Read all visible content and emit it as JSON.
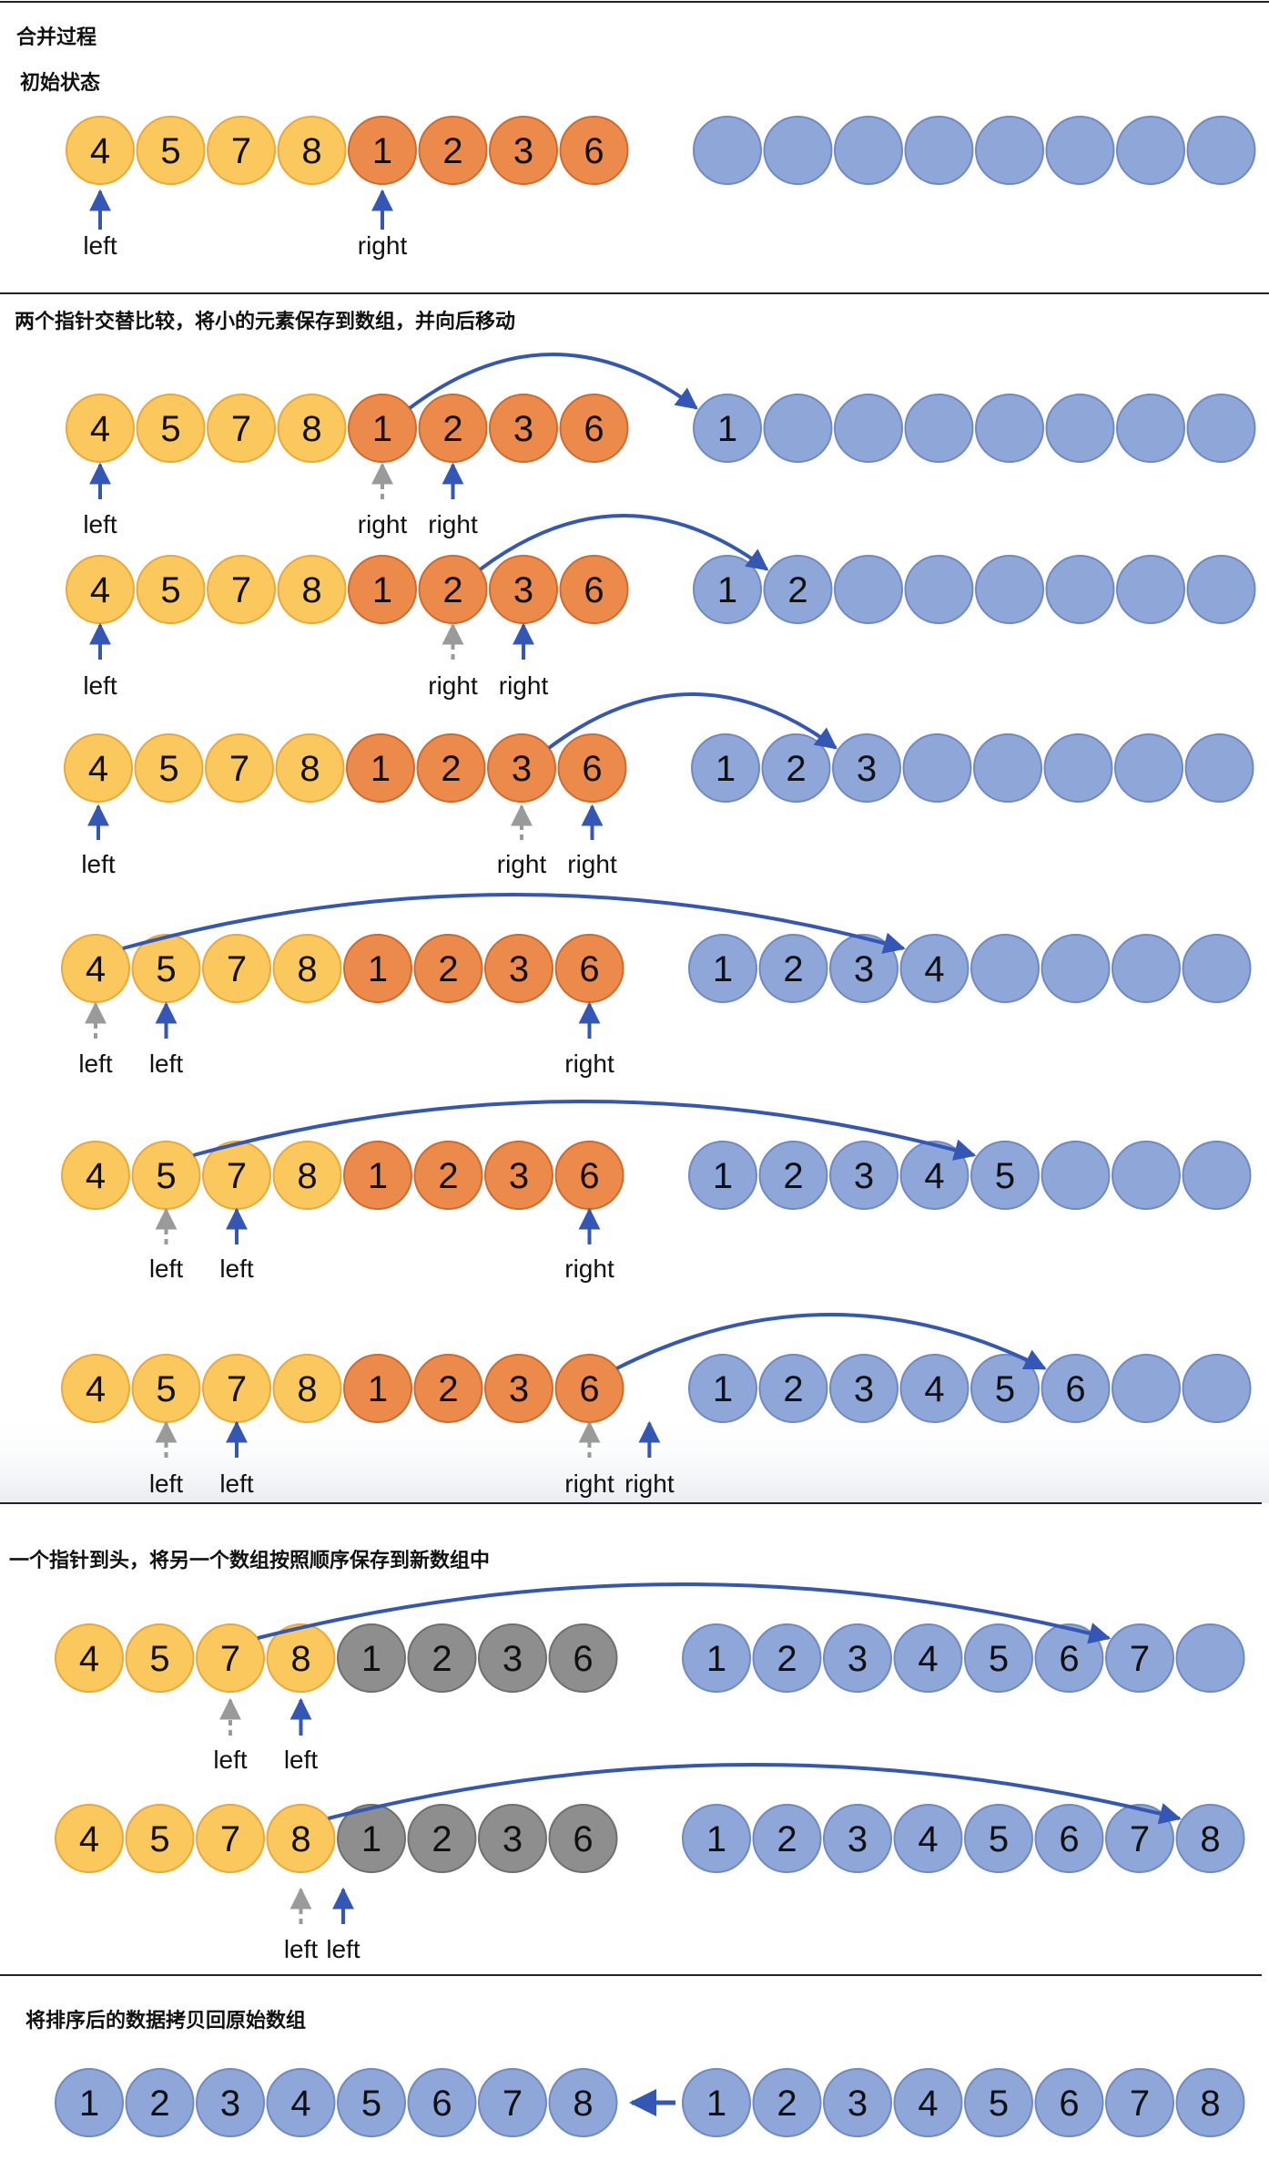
{
  "colors": {
    "left_fill": "#fbc85e",
    "left_stroke": "#eaa838",
    "right_fill": "#ec8a4b",
    "right_stroke": "#d06a2c",
    "temp_fill": "#8ea6d8",
    "temp_stroke": "#6f89c2",
    "done_fill": "#8e8e8e",
    "done_stroke": "#6f6f6f",
    "arrow_blue": "#3456b5",
    "arrow_gray": "#9a9a9a",
    "divider": "#222222"
  },
  "labels": {
    "left": "left",
    "right": "right"
  },
  "sections": [
    {
      "title": "合并过程"
    },
    {
      "title": "初始状态"
    },
    {
      "title": "两个指针交替比较，将小的元素保存到数组，并向后移动"
    },
    {
      "title": "一个指针到头，将另一个数组按照顺序保存到新数组中"
    },
    {
      "title": "将排序后的数据拷贝回原始数组"
    }
  ],
  "rows": [
    {
      "left": [
        "4",
        "5",
        "7",
        "8"
      ],
      "right": [
        "1",
        "2",
        "3",
        "6"
      ],
      "right_state": "active",
      "temp": [
        "",
        "",
        "",
        "",
        "",
        "",
        "",
        ""
      ],
      "pointers": [
        {
          "slot": 0,
          "label": "left",
          "style": "solid"
        },
        {
          "slot": 4,
          "label": "right",
          "style": "solid"
        }
      ]
    },
    {
      "left": [
        "4",
        "5",
        "7",
        "8"
      ],
      "right": [
        "1",
        "2",
        "3",
        "6"
      ],
      "right_state": "active",
      "temp": [
        "1",
        "",
        "",
        "",
        "",
        "",
        "",
        ""
      ],
      "pointers": [
        {
          "slot": 0,
          "label": "left",
          "style": "solid"
        },
        {
          "slot": 4,
          "label": "right",
          "style": "dashed"
        },
        {
          "slot": 5,
          "label": "right",
          "style": "solid"
        }
      ]
    },
    {
      "left": [
        "4",
        "5",
        "7",
        "8"
      ],
      "right": [
        "1",
        "2",
        "3",
        "6"
      ],
      "right_state": "active",
      "temp": [
        "1",
        "2",
        "",
        "",
        "",
        "",
        "",
        ""
      ],
      "pointers": [
        {
          "slot": 0,
          "label": "left",
          "style": "solid"
        },
        {
          "slot": 5,
          "label": "right",
          "style": "dashed"
        },
        {
          "slot": 6,
          "label": "right",
          "style": "solid"
        }
      ]
    },
    {
      "left": [
        "4",
        "5",
        "7",
        "8"
      ],
      "right": [
        "1",
        "2",
        "3",
        "6"
      ],
      "right_state": "active",
      "temp": [
        "1",
        "2",
        "3",
        "",
        "",
        "",
        "",
        ""
      ],
      "pointers": [
        {
          "slot": 0,
          "label": "left",
          "style": "solid"
        },
        {
          "slot": 6,
          "label": "right",
          "style": "dashed"
        },
        {
          "slot": 7,
          "label": "right",
          "style": "solid"
        }
      ]
    },
    {
      "left": [
        "4",
        "5",
        "7",
        "8"
      ],
      "right": [
        "1",
        "2",
        "3",
        "6"
      ],
      "right_state": "active",
      "temp": [
        "1",
        "2",
        "3",
        "4",
        "",
        "",
        "",
        ""
      ],
      "pointers": [
        {
          "slot": 0,
          "label": "left",
          "style": "dashed"
        },
        {
          "slot": 1,
          "label": "left",
          "style": "solid"
        },
        {
          "slot": 7,
          "label": "right",
          "style": "solid"
        }
      ]
    },
    {
      "left": [
        "4",
        "5",
        "7",
        "8"
      ],
      "right": [
        "1",
        "2",
        "3",
        "6"
      ],
      "right_state": "active",
      "temp": [
        "1",
        "2",
        "3",
        "4",
        "5",
        "",
        "",
        ""
      ],
      "pointers": [
        {
          "slot": 1,
          "label": "left",
          "style": "dashed"
        },
        {
          "slot": 2,
          "label": "left",
          "style": "solid"
        },
        {
          "slot": 7,
          "label": "right",
          "style": "solid"
        }
      ]
    },
    {
      "left": [
        "4",
        "5",
        "7",
        "8"
      ],
      "right": [
        "1",
        "2",
        "3",
        "6"
      ],
      "right_state": "active",
      "temp": [
        "1",
        "2",
        "3",
        "4",
        "5",
        "6",
        "",
        ""
      ],
      "pointers": [
        {
          "slot": 1,
          "label": "left",
          "style": "dashed"
        },
        {
          "slot": 2,
          "label": "left",
          "style": "solid"
        },
        {
          "slot": 7,
          "label": "right",
          "style": "dashed"
        },
        {
          "slot": 7.85,
          "label": "right",
          "style": "solid"
        }
      ]
    },
    {
      "left": [
        "4",
        "5",
        "7",
        "8"
      ],
      "right": [
        "1",
        "2",
        "3",
        "6"
      ],
      "right_state": "done",
      "temp": [
        "1",
        "2",
        "3",
        "4",
        "5",
        "6",
        "7",
        ""
      ],
      "pointers": [
        {
          "slot": 2,
          "label": "left",
          "style": "dashed"
        },
        {
          "slot": 3,
          "label": "left",
          "style": "solid"
        }
      ]
    },
    {
      "left": [
        "4",
        "5",
        "7",
        "8"
      ],
      "right": [
        "1",
        "2",
        "3",
        "6"
      ],
      "right_state": "done",
      "temp": [
        "1",
        "2",
        "3",
        "4",
        "5",
        "6",
        "7",
        "8"
      ],
      "pointers": [
        {
          "slot": 3,
          "label": "left",
          "style": "dashed"
        },
        {
          "slot": 3.6,
          "label": "left",
          "style": "solid"
        }
      ]
    }
  ],
  "final": {
    "original": [
      "1",
      "2",
      "3",
      "4",
      "5",
      "6",
      "7",
      "8"
    ],
    "temp": [
      "1",
      "2",
      "3",
      "4",
      "5",
      "6",
      "7",
      "8"
    ]
  }
}
